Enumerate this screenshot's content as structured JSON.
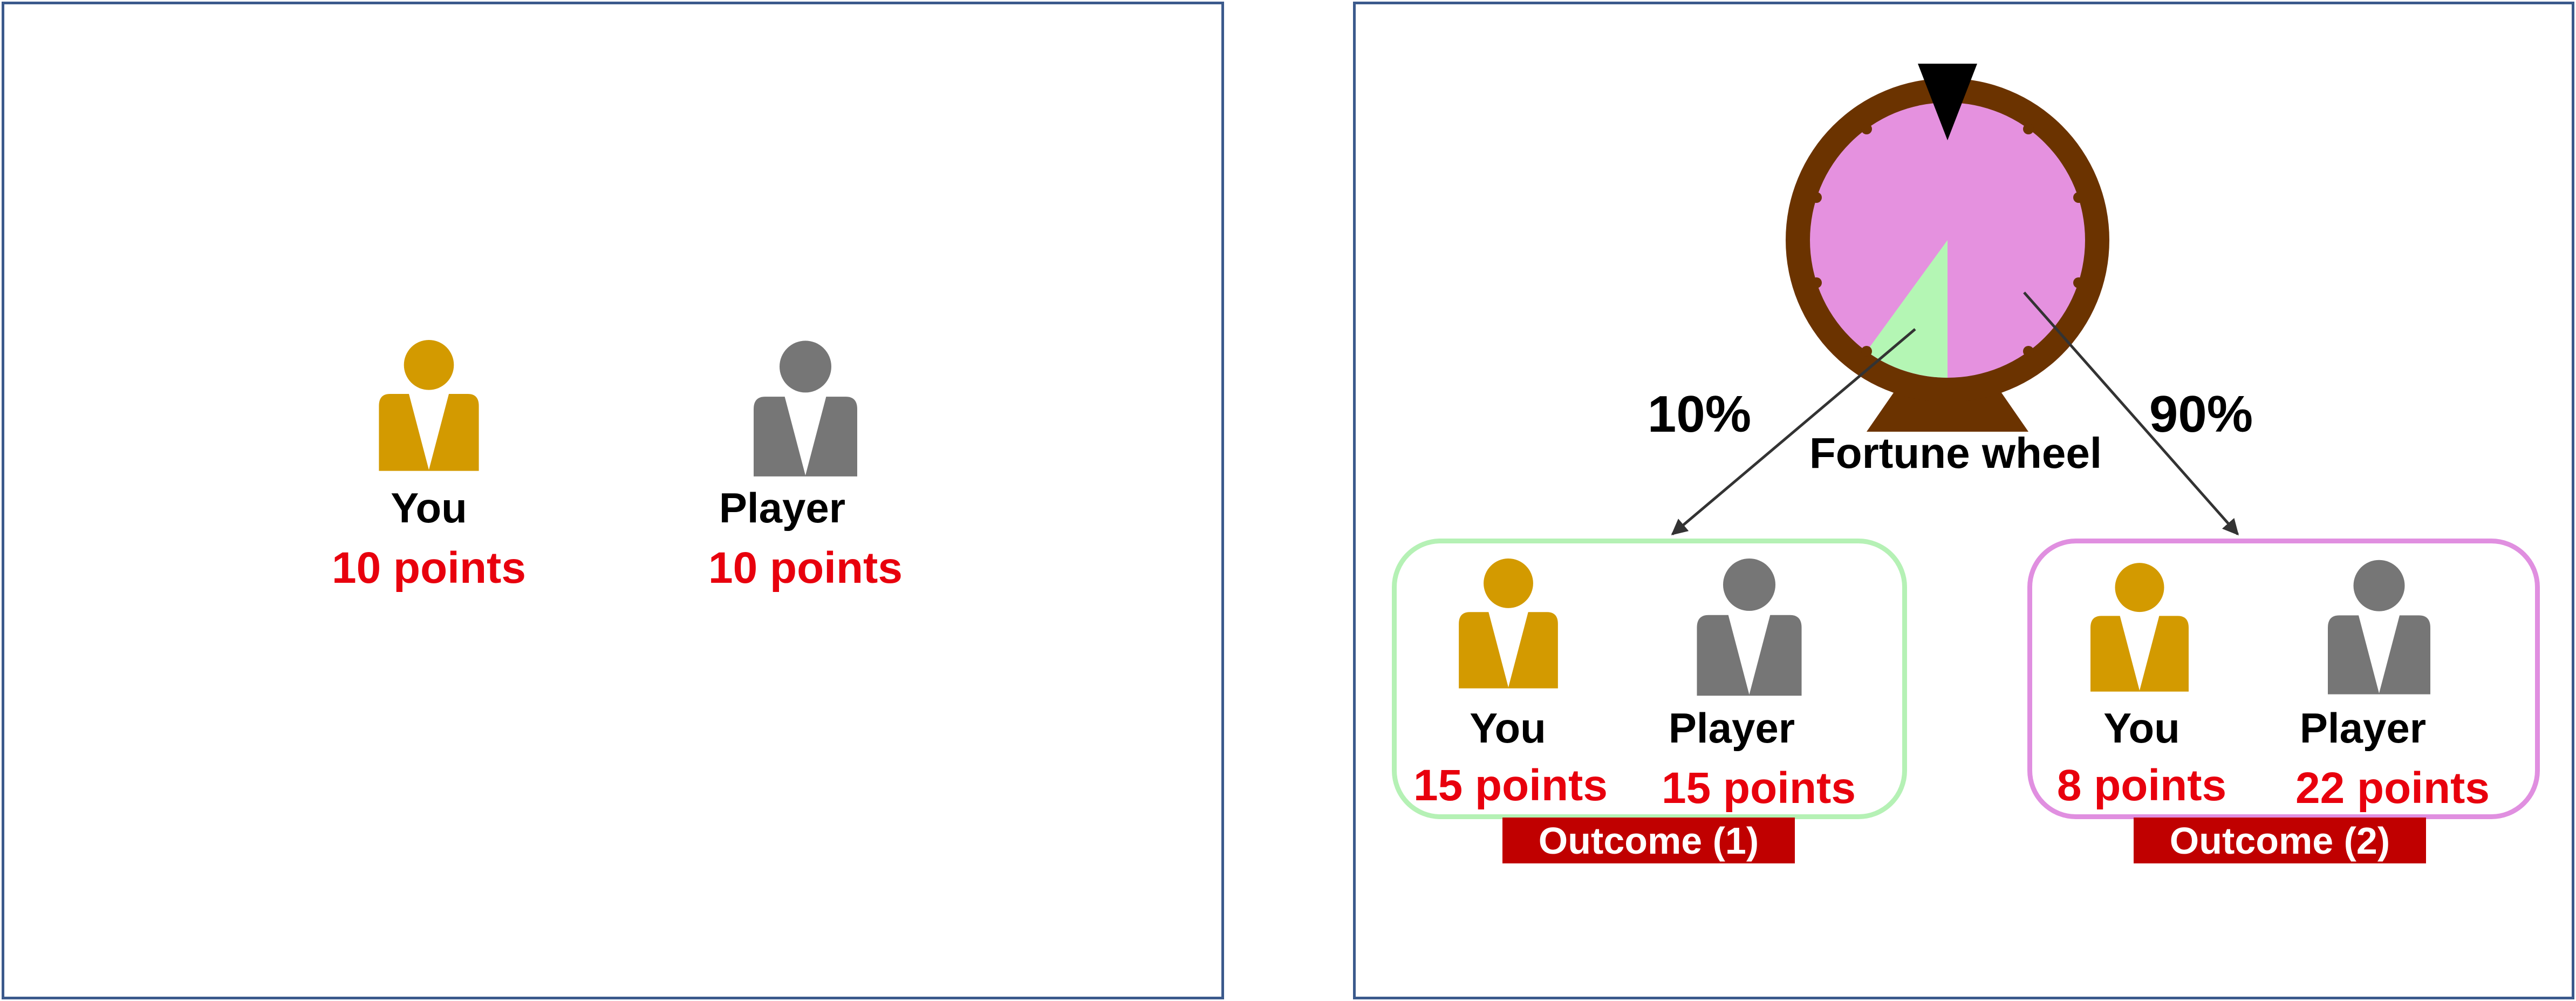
{
  "colors": {
    "you": "#D39A00",
    "player": "#767676",
    "points": "#E8000D",
    "outcome1_border": "#B5F1B5",
    "outcome2_border": "#E08FE0",
    "tag_bg": "#C00000",
    "wheel_rim": "#6B3300",
    "wheel_face": "#E591DF",
    "wheel_slice": "#B4F6B4"
  },
  "initial": {
    "you": {
      "label": "You",
      "points": "10 points",
      "icon": "person-icon"
    },
    "player": {
      "label": "Player",
      "points": "10 points",
      "icon": "person-icon"
    }
  },
  "wheel": {
    "label": "Fortune wheel",
    "icon": "fortune-wheel-icon",
    "pointer_icon": "triangle-pointer-icon",
    "slices": [
      {
        "share": 0.1,
        "color": "green"
      },
      {
        "share": 0.9,
        "color": "pink"
      }
    ]
  },
  "branches": [
    {
      "probability": "10%"
    },
    {
      "probability": "90%"
    }
  ],
  "outcomes": [
    {
      "tag": "Outcome (1)",
      "you": {
        "label": "You",
        "points": "15 points"
      },
      "player": {
        "label": "Player",
        "points": "15 points"
      }
    },
    {
      "tag": "Outcome (2)",
      "you": {
        "label": "You",
        "points": "8 points"
      },
      "player": {
        "label": "Player",
        "points": "22 points"
      }
    }
  ]
}
